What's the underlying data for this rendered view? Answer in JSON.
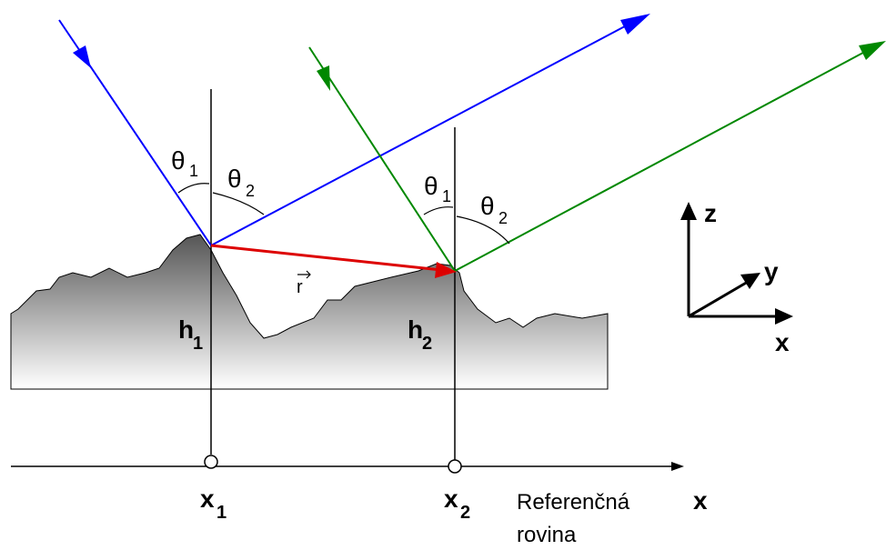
{
  "angles": [
    {
      "symbol": "θ",
      "sub": "1"
    },
    {
      "symbol": "θ",
      "sub": "2"
    },
    {
      "symbol": "θ",
      "sub": "1"
    },
    {
      "symbol": "θ",
      "sub": "2"
    }
  ],
  "heights": [
    {
      "symbol": "h",
      "sub": "1"
    },
    {
      "symbol": "h",
      "sub": "2"
    }
  ],
  "vector": "r",
  "positions": [
    {
      "symbol": "x",
      "sub": "1"
    },
    {
      "symbol": "x",
      "sub": "2"
    }
  ],
  "reference": {
    "line1": "Referenčná",
    "axis": "x",
    "line2": "rovina"
  },
  "axes": {
    "z": "z",
    "y": "y",
    "x": "x"
  }
}
